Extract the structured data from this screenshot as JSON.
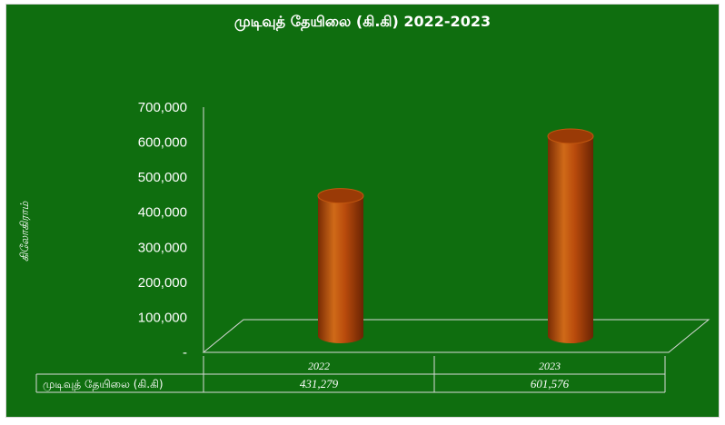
{
  "chart_data": {
    "type": "bar",
    "title": "முடிவுத் தேயிலை (கி.கி) 2022-2023",
    "ylabel": "கிலோகிராம்",
    "xlabel": "",
    "categories": [
      "2022",
      "2023"
    ],
    "series": [
      {
        "name": "முடிவுத் தேயிலை (கி.கி)",
        "values": [
          431279,
          601576
        ]
      }
    ],
    "value_labels": [
      "431,279",
      "601,576"
    ],
    "ylim": [
      0,
      700000
    ],
    "yticks": [
      "-",
      "100,000",
      "200,000",
      "300,000",
      "400,000",
      "500,000",
      "600,000",
      "700,000"
    ],
    "bar_shape": "cylinder",
    "data_table": true,
    "grid": false
  },
  "colors": {
    "background": "#0f6e0f",
    "bar": "#b84a0c",
    "text": "#ffffff"
  }
}
